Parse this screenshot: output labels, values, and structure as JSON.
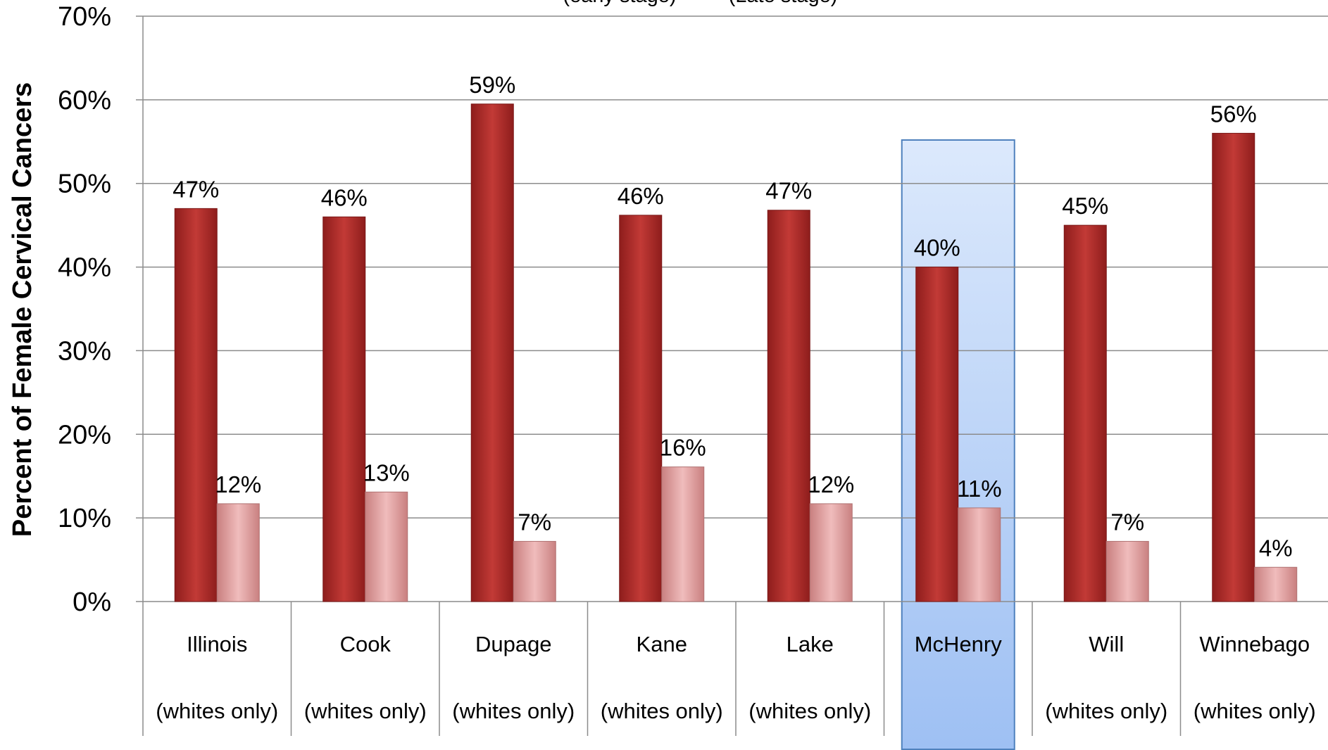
{
  "chart_data": {
    "type": "bar",
    "title": "",
    "ylabel": "Percent of Female Cervical Cancers",
    "xlabel": "",
    "ylim": [
      0,
      0.7
    ],
    "yticks": [
      "0%",
      "10%",
      "20%",
      "30%",
      "40%",
      "50%",
      "60%",
      "70%"
    ],
    "grid": true,
    "legend_position": "top",
    "legend_fragments": [
      "(early stage)",
      "(Late stage)"
    ],
    "categories": [
      {
        "name": "Illinois",
        "sub": "(whites only)"
      },
      {
        "name": "Cook",
        "sub": "(whites only)"
      },
      {
        "name": "Dupage",
        "sub": "(whites only)"
      },
      {
        "name": "Kane",
        "sub": "(whites only)"
      },
      {
        "name": "Lake",
        "sub": "(whites only)"
      },
      {
        "name": "McHenry",
        "sub": ""
      },
      {
        "name": "Will",
        "sub": "(whites only)"
      },
      {
        "name": "Winnebago",
        "sub": "(whites only)"
      }
    ],
    "highlighted_category": "McHenry",
    "series": [
      {
        "key": "early",
        "color": "#b5302e",
        "values": [
          0.47,
          0.46,
          0.595,
          0.462,
          0.468,
          0.4,
          0.45,
          0.56
        ],
        "labels": [
          "47%",
          "46%",
          "59%",
          "46%",
          "47%",
          "40%",
          "45%",
          "56%"
        ]
      },
      {
        "key": "late",
        "color": "#e3a3a3",
        "values": [
          0.117,
          0.131,
          0.072,
          0.161,
          0.117,
          0.112,
          0.072,
          0.041
        ],
        "labels": [
          "12%",
          "13%",
          "7%",
          "16%",
          "12%",
          "11%",
          "7%",
          "4%"
        ]
      }
    ],
    "colors": {
      "grid": "#8c8c8c",
      "highlight_fill": "#a9c8f5",
      "highlight_stroke": "#4f81bd"
    }
  }
}
